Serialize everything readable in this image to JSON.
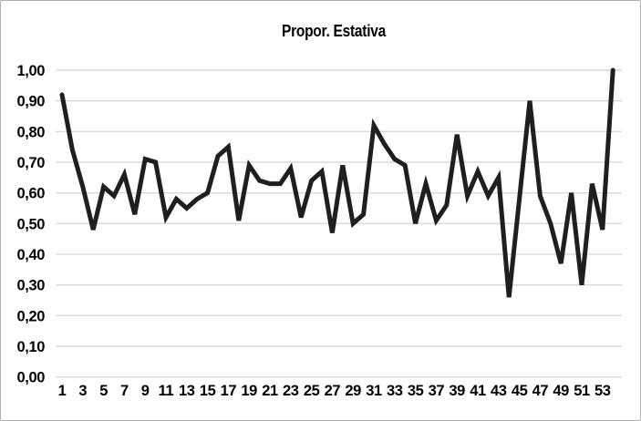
{
  "window": {
    "background": "#ffffff",
    "border_color": "#aeaeae"
  },
  "chart_data": {
    "type": "line",
    "title": "Propor. Estativa",
    "x": [
      1,
      2,
      3,
      4,
      5,
      6,
      7,
      8,
      9,
      10,
      11,
      12,
      13,
      14,
      15,
      16,
      17,
      18,
      19,
      20,
      21,
      22,
      23,
      24,
      25,
      26,
      27,
      28,
      29,
      30,
      31,
      32,
      33,
      34,
      35,
      36,
      37,
      38,
      39,
      40,
      41,
      42,
      43,
      44,
      45,
      46,
      47,
      48,
      49,
      50,
      51,
      52,
      53,
      54
    ],
    "values": [
      0.92,
      0.74,
      0.62,
      0.48,
      0.62,
      0.59,
      0.66,
      0.53,
      0.71,
      0.7,
      0.52,
      0.58,
      0.55,
      0.58,
      0.6,
      0.72,
      0.75,
      0.51,
      0.69,
      0.64,
      0.63,
      0.63,
      0.68,
      0.52,
      0.64,
      0.67,
      0.47,
      0.69,
      0.5,
      0.53,
      0.82,
      0.76,
      0.71,
      0.69,
      0.5,
      0.63,
      0.51,
      0.56,
      0.79,
      0.59,
      0.67,
      0.59,
      0.65,
      0.26,
      0.58,
      0.9,
      0.59,
      0.5,
      0.37,
      0.6,
      0.3,
      0.63,
      0.48,
      1.0
    ],
    "x_tick_labels": [
      "1",
      "3",
      "5",
      "7",
      "9",
      "11",
      "13",
      "15",
      "17",
      "19",
      "21",
      "23",
      "25",
      "27",
      "29",
      "31",
      "33",
      "35",
      "37",
      "39",
      "41",
      "43",
      "45",
      "47",
      "49",
      "51",
      "53"
    ],
    "y_tick_labels": [
      "0,00",
      "0,10",
      "0,20",
      "0,30",
      "0,40",
      "0,50",
      "0,60",
      "0,70",
      "0,80",
      "0,90",
      "1,00"
    ],
    "ylim": [
      0,
      1
    ],
    "y_tick_step": 0.1,
    "grid": "horizontal-only",
    "legend": "none",
    "line_color": "#1f1f1f",
    "line_width": 5,
    "grid_color": "#d9d9d9",
    "label_color": "#000000"
  }
}
